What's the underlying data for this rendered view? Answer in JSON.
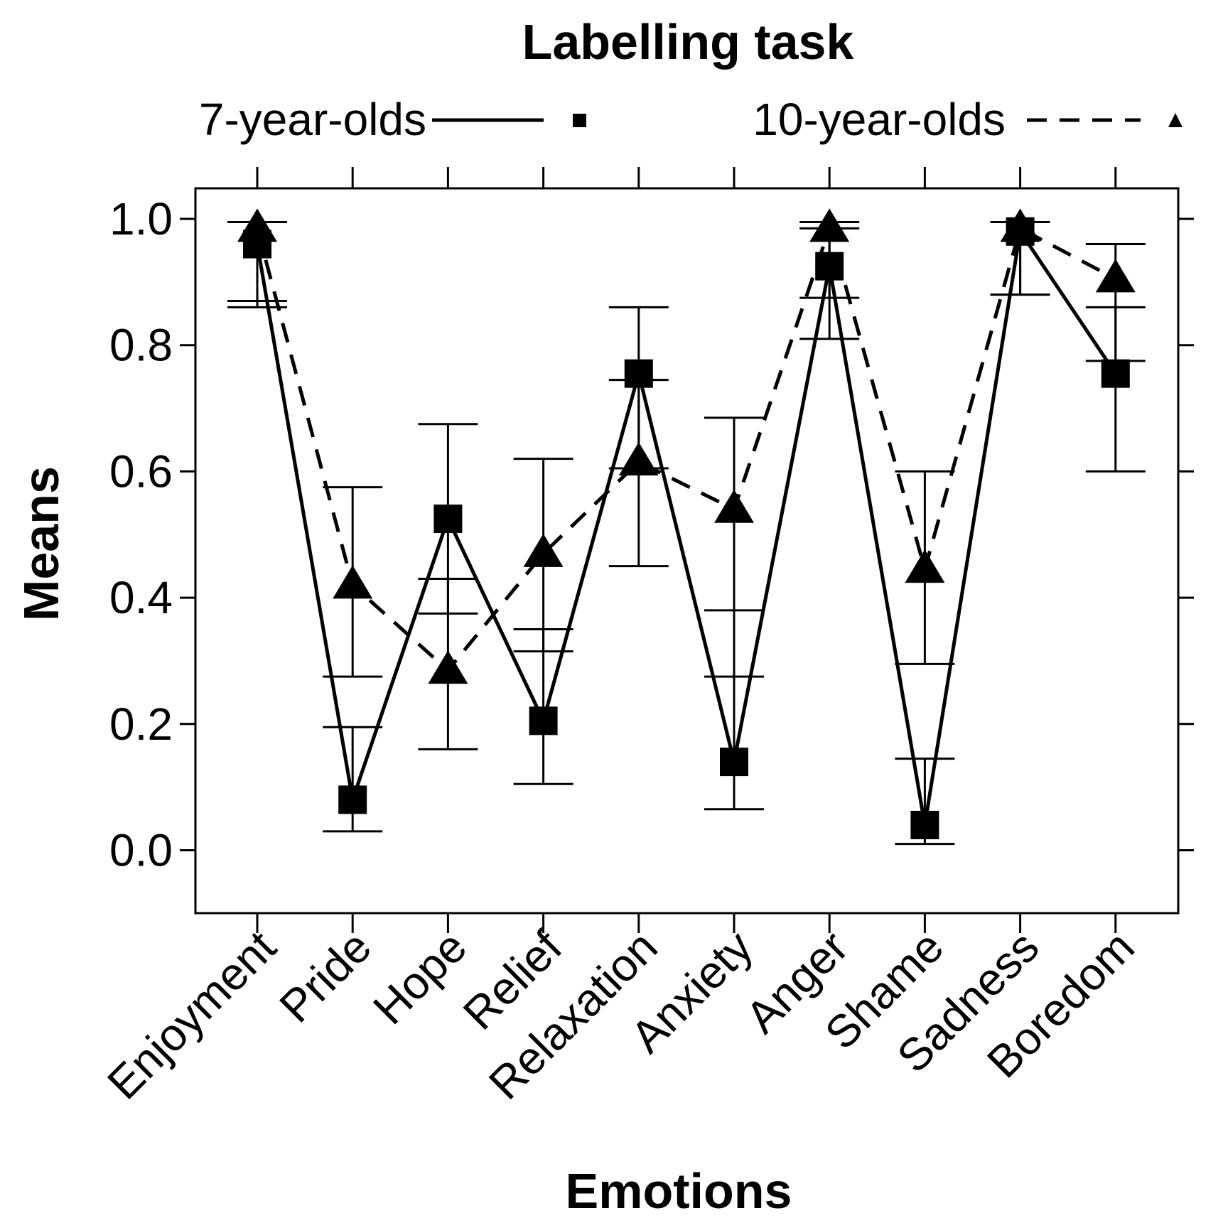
{
  "chart_data": {
    "type": "line",
    "title": "Labelling task",
    "xlabel": "Emotions",
    "ylabel": "Means",
    "categories": [
      "Enjoyment",
      "Pride",
      "Hope",
      "Relief",
      "Relaxation",
      "Anxiety",
      "Anger",
      "Shame",
      "Sadness",
      "Boredom"
    ],
    "ylim": [
      -0.1,
      1.05
    ],
    "yticks": [
      "0.0",
      "0.2",
      "0.4",
      "0.6",
      "0.8",
      "1.0"
    ],
    "grid": false,
    "legend_position": "top",
    "series": [
      {
        "name": "7-year-olds",
        "marker": "square",
        "line_style": "solid",
        "values": [
          0.96,
          0.08,
          0.525,
          0.205,
          0.755,
          0.14,
          0.925,
          0.04,
          0.98,
          0.755
        ],
        "error_low": [
          0.86,
          0.03,
          0.375,
          0.105,
          0.45,
          0.065,
          0.81,
          0.01,
          0.88,
          0.6
        ],
        "error_high": [
          0.995,
          0.195,
          0.675,
          0.35,
          0.86,
          0.38,
          0.985,
          0.145,
          0.995,
          0.86
        ]
      },
      {
        "name": "10-year-olds",
        "marker": "triangle",
        "line_style": "dashed",
        "values": [
          0.985,
          0.42,
          0.285,
          0.47,
          0.615,
          0.54,
          0.985,
          0.445,
          0.985,
          0.905
        ],
        "error_low": [
          0.87,
          0.275,
          0.16,
          0.315,
          0.605,
          0.275,
          0.875,
          0.295,
          0.88,
          0.775
        ],
        "error_high": [
          0.995,
          0.575,
          0.43,
          0.62,
          0.745,
          0.685,
          0.995,
          0.6,
          0.995,
          0.96
        ]
      }
    ]
  }
}
